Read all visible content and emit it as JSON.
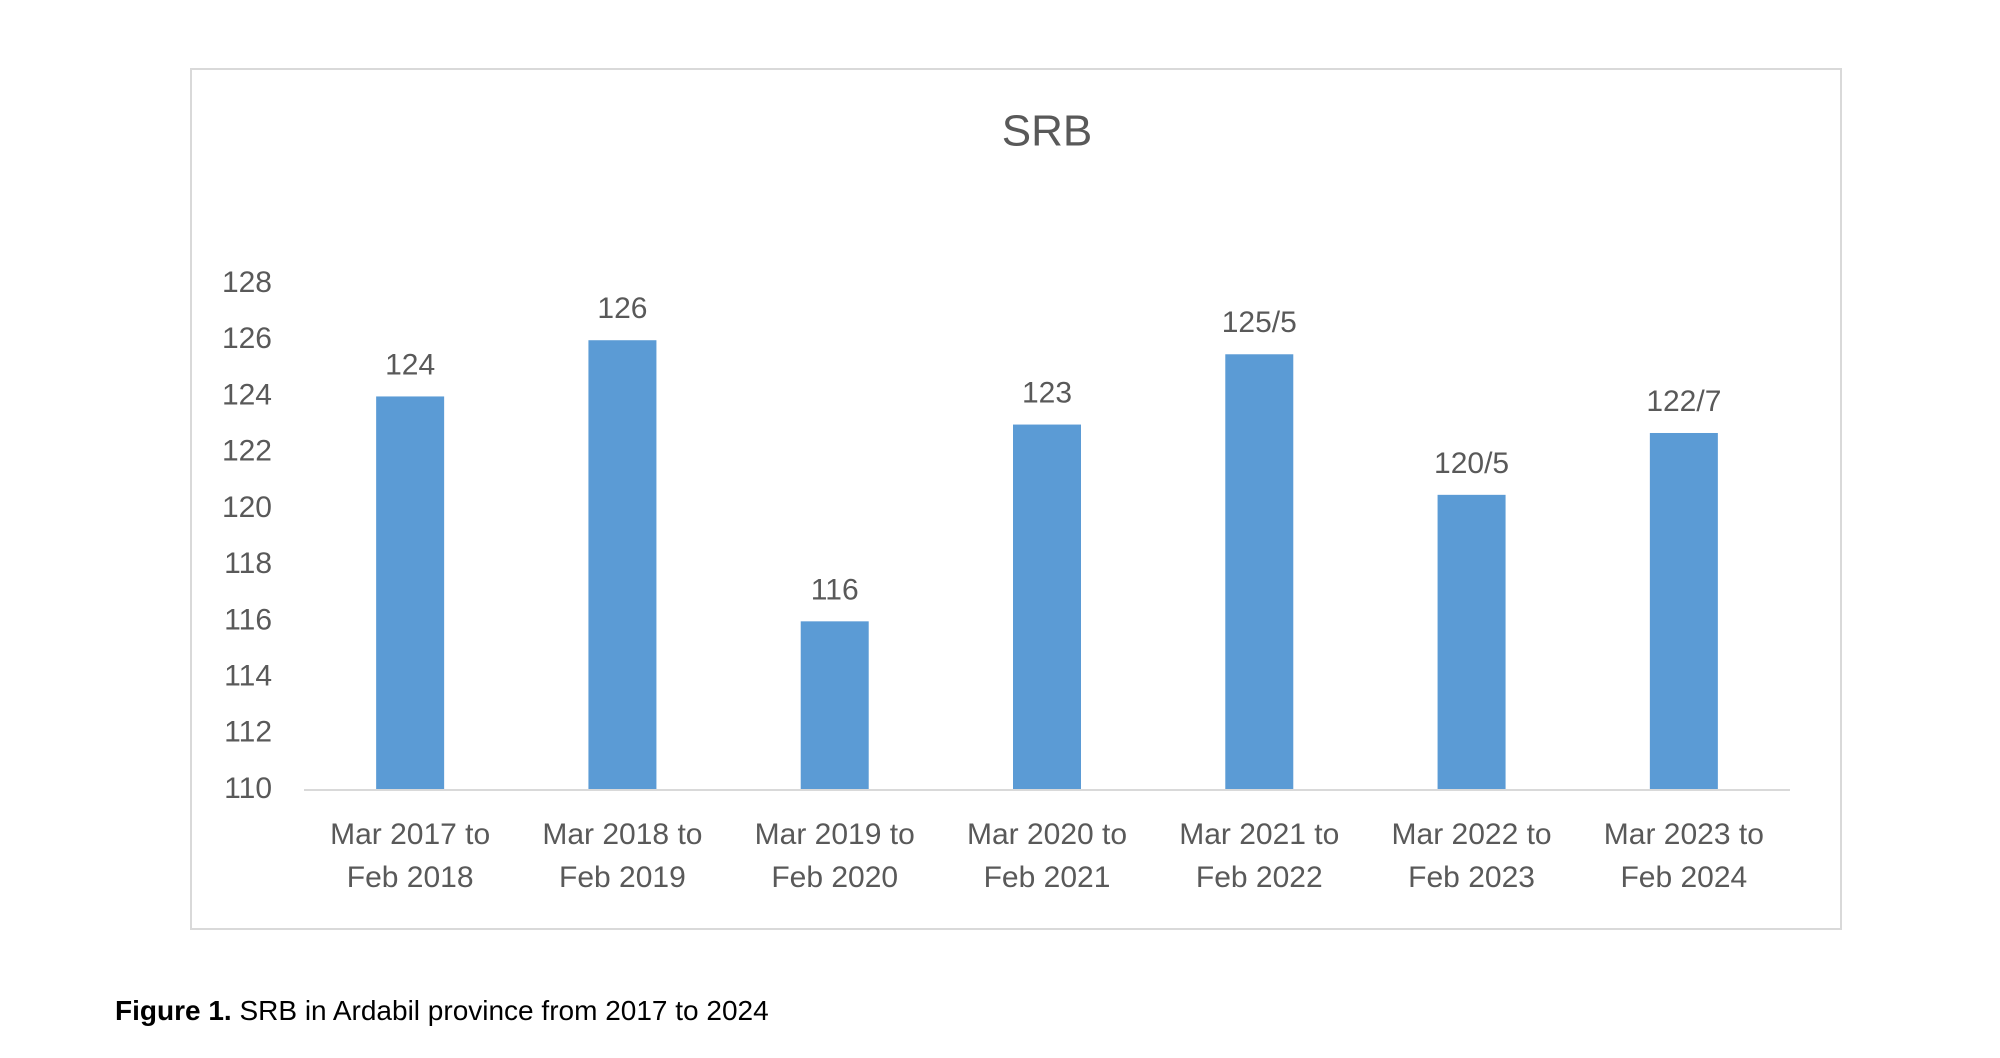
{
  "chart_data": {
    "type": "bar",
    "title": "SRB",
    "categories": [
      [
        "Mar 2017 to",
        "Feb 2018"
      ],
      [
        "Mar 2018 to",
        "Feb 2019"
      ],
      [
        "Mar 2019 to",
        "Feb 2020"
      ],
      [
        "Mar 2020 to",
        "Feb 2021"
      ],
      [
        "Mar 2021 to",
        "Feb 2022"
      ],
      [
        "Mar 2022 to",
        "Feb 2023"
      ],
      [
        "Mar 2023 to",
        "Feb 2024"
      ]
    ],
    "values": [
      124,
      126,
      116,
      123,
      125.5,
      120.5,
      122.7
    ],
    "data_labels": [
      "124",
      "126",
      "116",
      "123",
      "125/5",
      "120/5",
      "122/7"
    ],
    "ylim": [
      110,
      128
    ],
    "yticks": [
      "110",
      "112",
      "114",
      "116",
      "118",
      "120",
      "122",
      "124",
      "126",
      "128"
    ],
    "xlabel": "",
    "ylabel": "",
    "grid": false,
    "legend": "none",
    "bar_color": "#5b9bd5",
    "text_color": "#595959",
    "axis_color": "#d9d9d9"
  },
  "caption": {
    "label": "Figure 1.",
    "text": " SRB in Ardabil province from 2017 to 2024"
  }
}
